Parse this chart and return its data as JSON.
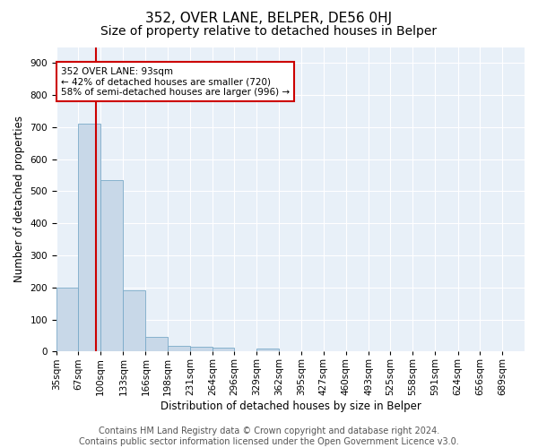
{
  "title": "352, OVER LANE, BELPER, DE56 0HJ",
  "subtitle": "Size of property relative to detached houses in Belper",
  "xlabel": "Distribution of detached houses by size in Belper",
  "ylabel": "Number of detached properties",
  "bar_edges": [
    35,
    67,
    100,
    133,
    166,
    198,
    231,
    264,
    296,
    329,
    362,
    395,
    427,
    460,
    493,
    525,
    558,
    591,
    624,
    656,
    689
  ],
  "bar_heights": [
    200,
    710,
    535,
    190,
    47,
    18,
    14,
    11,
    0,
    10,
    0,
    0,
    0,
    0,
    0,
    0,
    0,
    0,
    0,
    0
  ],
  "bar_labels": [
    "35sqm",
    "67sqm",
    "100sqm",
    "133sqm",
    "166sqm",
    "198sqm",
    "231sqm",
    "264sqm",
    "296sqm",
    "329sqm",
    "362sqm",
    "395sqm",
    "427sqm",
    "460sqm",
    "493sqm",
    "525sqm",
    "558sqm",
    "591sqm",
    "624sqm",
    "656sqm",
    "689sqm"
  ],
  "bar_color": "#c8d8e8",
  "bar_edge_color": "#7aaac8",
  "property_line_x": 93,
  "red_line_color": "#cc0000",
  "annotation_text": "352 OVER LANE: 93sqm\n← 42% of detached houses are smaller (720)\n58% of semi-detached houses are larger (996) →",
  "annotation_box_color": "white",
  "annotation_box_edge": "#cc0000",
  "ylim": [
    0,
    950
  ],
  "yticks": [
    0,
    100,
    200,
    300,
    400,
    500,
    600,
    700,
    800,
    900
  ],
  "xlim_left": 35,
  "xlim_right": 722,
  "background_color": "#e8f0f8",
  "footer_text": "Contains HM Land Registry data © Crown copyright and database right 2024.\nContains public sector information licensed under the Open Government Licence v3.0.",
  "title_fontsize": 11,
  "subtitle_fontsize": 10,
  "label_fontsize": 8.5,
  "tick_fontsize": 7.5,
  "footer_fontsize": 7
}
